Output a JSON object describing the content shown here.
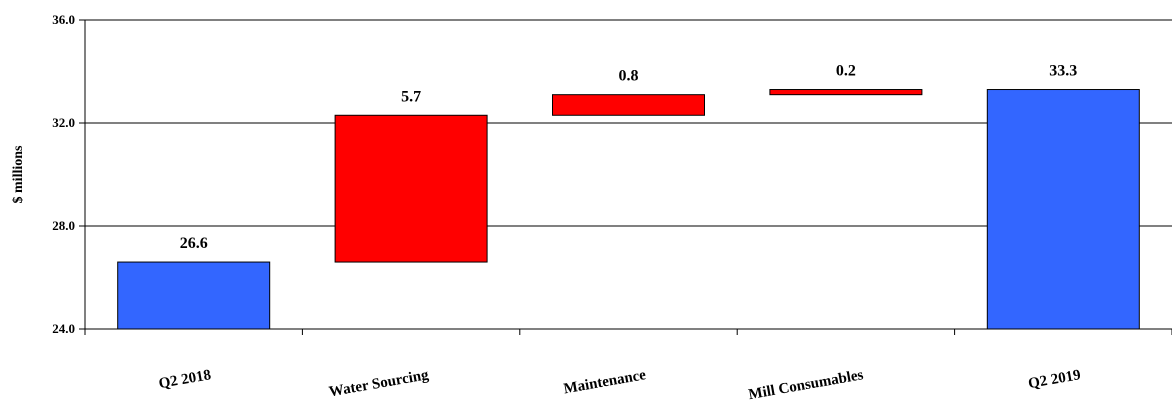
{
  "chart_data": {
    "type": "bar",
    "subtype": "waterfall",
    "ylabel": "$ millions",
    "ylim": [
      24.0,
      36.0
    ],
    "yticks": [
      "24.0",
      "28.0",
      "32.0",
      "36.0"
    ],
    "grid": true,
    "categories": [
      "Q2 2018",
      "Water Sourcing",
      "Maintenance",
      "Mill Consumables",
      "Q2 2019"
    ],
    "bars": [
      {
        "category": "Q2 2018",
        "kind": "total",
        "start": 24.0,
        "end": 26.6,
        "label": "26.6"
      },
      {
        "category": "Water Sourcing",
        "kind": "increase",
        "start": 26.6,
        "end": 32.3,
        "label": "5.7"
      },
      {
        "category": "Maintenance",
        "kind": "increase",
        "start": 32.3,
        "end": 33.1,
        "label": "0.8"
      },
      {
        "category": "Mill Consumables",
        "kind": "increase",
        "start": 33.1,
        "end": 33.3,
        "label": "0.2"
      },
      {
        "category": "Q2 2019",
        "kind": "total",
        "start": 24.0,
        "end": 33.3,
        "label": "33.3"
      }
    ],
    "colors": {
      "total": "#3366ff",
      "increase": "#ff0000"
    }
  }
}
